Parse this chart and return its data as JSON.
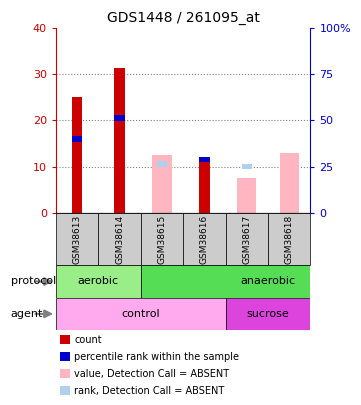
{
  "title": "GDS1448 / 261095_at",
  "samples": [
    "GSM38613",
    "GSM38614",
    "GSM38615",
    "GSM38616",
    "GSM38617",
    "GSM38618"
  ],
  "red_values": [
    25,
    31.5,
    0,
    11,
    0,
    0
  ],
  "blue_values": [
    16,
    20.5,
    0,
    11.5,
    0,
    0
  ],
  "pink_values": [
    0,
    0,
    12.5,
    0,
    7.5,
    13
  ],
  "lightblue_values": [
    0,
    0,
    10.5,
    0,
    10,
    0
  ],
  "ylim": [
    0,
    40
  ],
  "yticks": [
    0,
    10,
    20,
    30,
    40
  ],
  "y2ticks": [
    0,
    25,
    50,
    75,
    100
  ],
  "color_red": "#cc0000",
  "color_blue": "#0000cc",
  "color_pink": "#ffb6c1",
  "color_lightblue": "#b0d0f0",
  "color_green_light": "#99ee88",
  "color_green_dark": "#55dd55",
  "color_pink_control": "#ffaaee",
  "color_pink_sucrose": "#dd44dd",
  "color_grey": "#cccccc",
  "legend_items": [
    {
      "label": "count",
      "color": "#cc0000"
    },
    {
      "label": "percentile rank within the sample",
      "color": "#0000cc"
    },
    {
      "label": "value, Detection Call = ABSENT",
      "color": "#ffb6c1"
    },
    {
      "label": "rank, Detection Call = ABSENT",
      "color": "#b0d0f0"
    }
  ]
}
